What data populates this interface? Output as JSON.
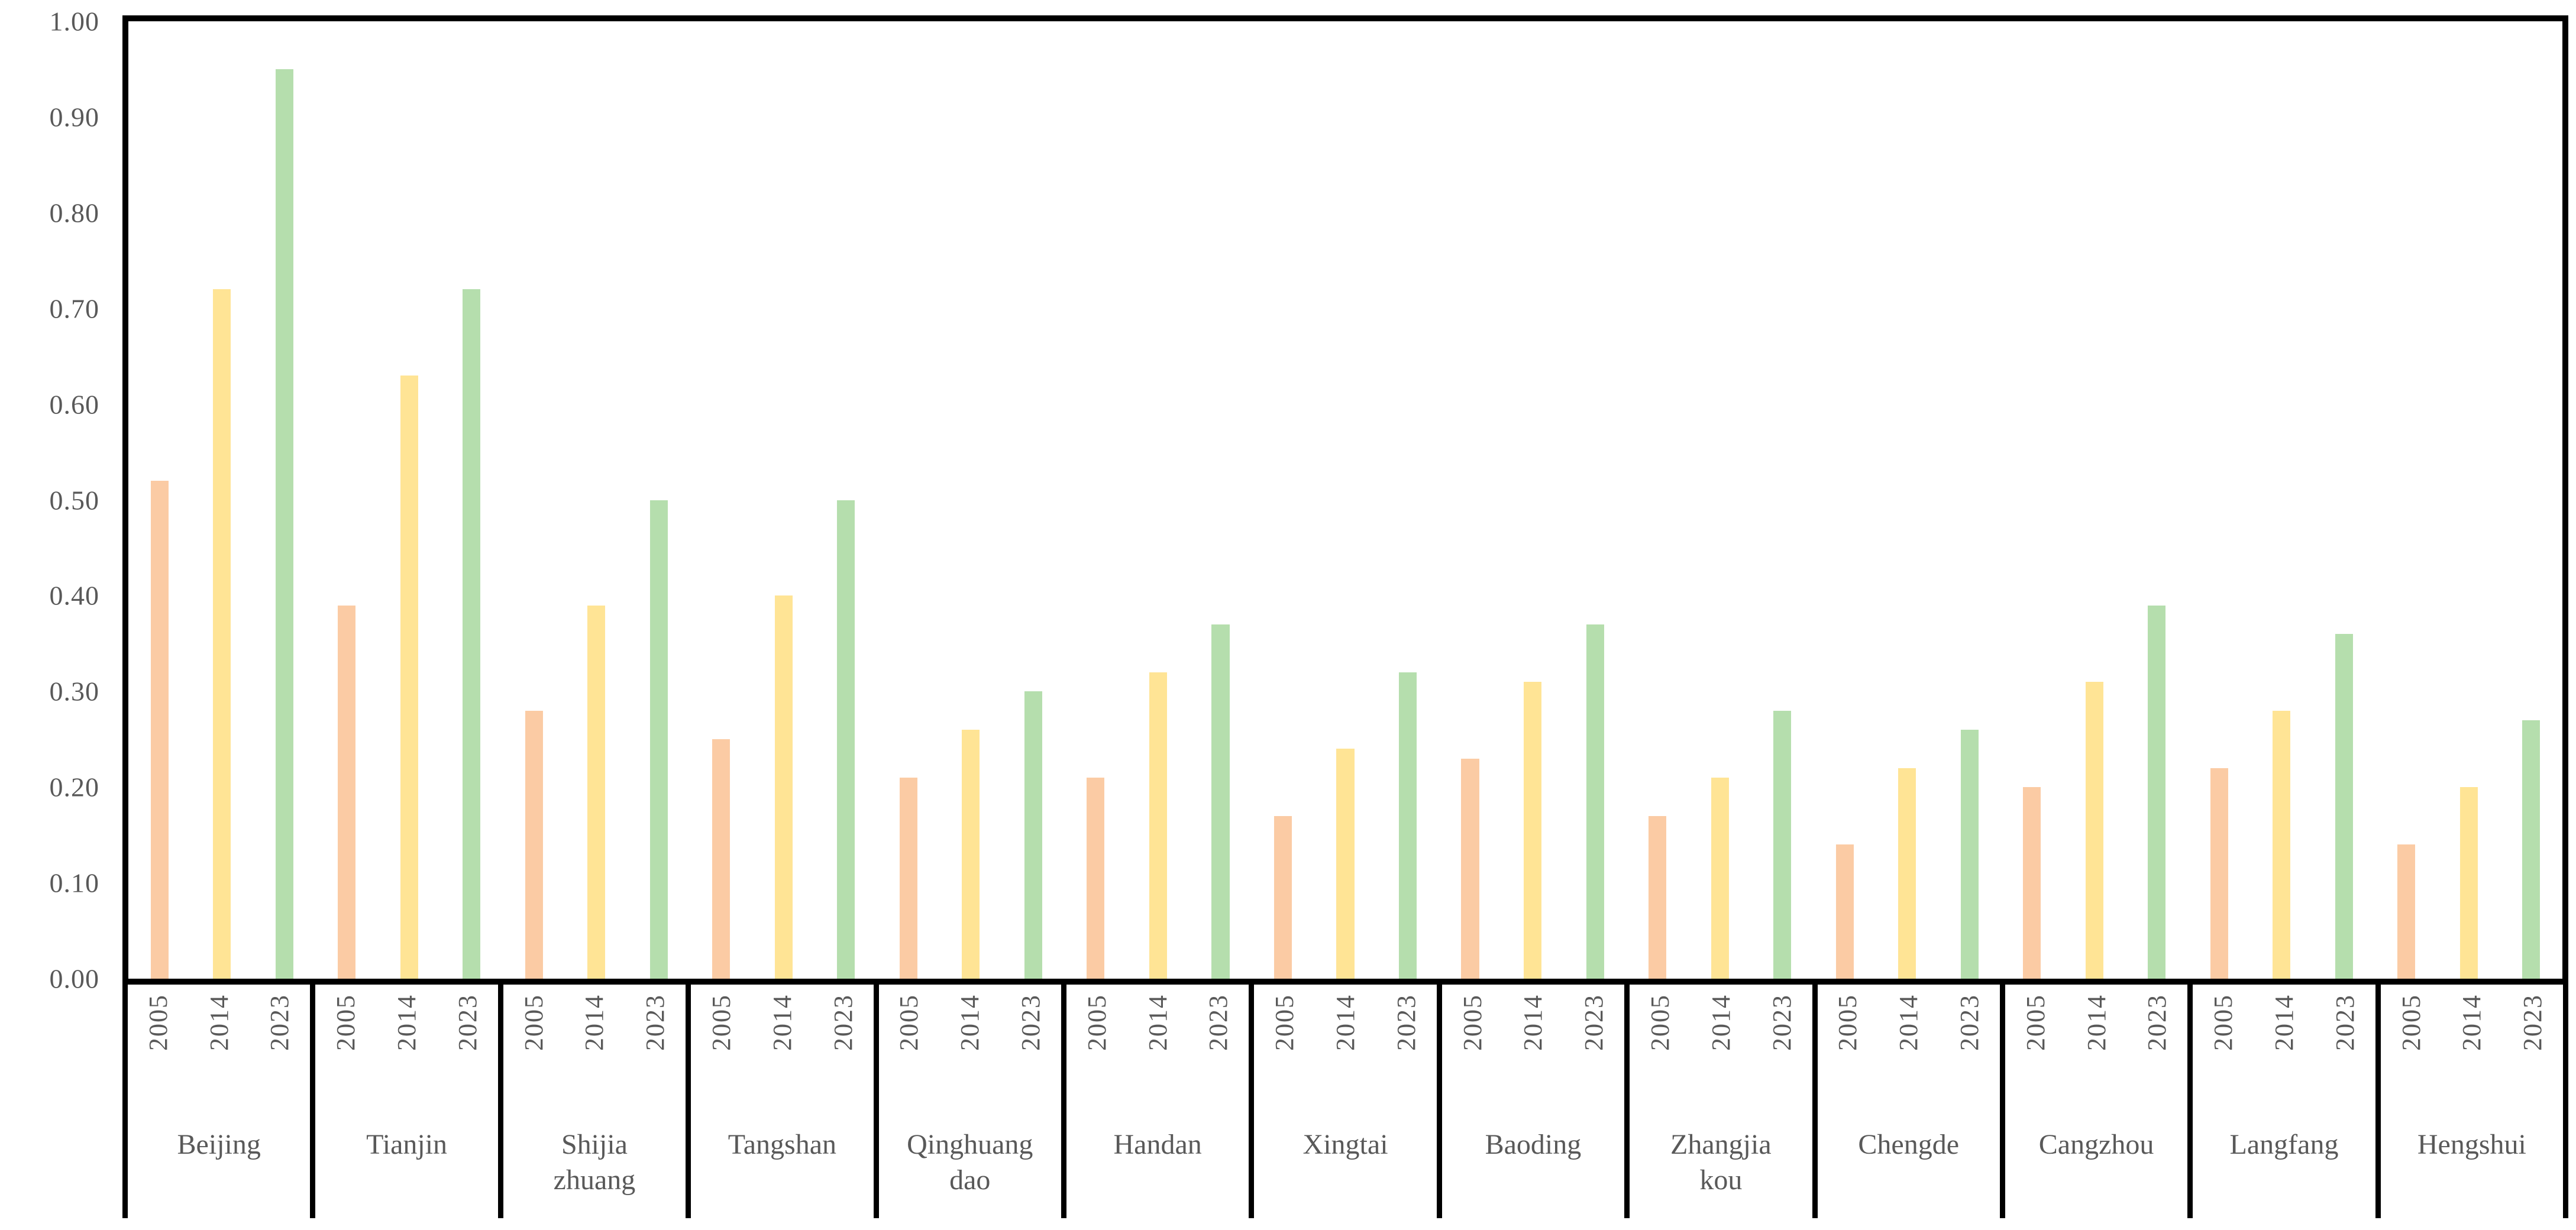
{
  "chart_data": {
    "type": "bar",
    "title": "",
    "xlabel": "",
    "ylabel": "",
    "ylim": [
      0.0,
      1.0
    ],
    "ytick_step": 0.1,
    "ytick_labels": [
      "1.00",
      "0.90",
      "0.80",
      "0.70",
      "0.60",
      "0.50",
      "0.40",
      "0.30",
      "0.20",
      "0.10",
      "0.00"
    ],
    "grid": false,
    "legend_position": "none",
    "group_year_labels": [
      "2005",
      "2014",
      "2023"
    ],
    "categories": [
      {
        "name": "Beijing",
        "lines": [
          "Beijing"
        ]
      },
      {
        "name": "Tianjin",
        "lines": [
          "Tianjin"
        ]
      },
      {
        "name": "Shijiazhuang",
        "lines": [
          "Shijia",
          "zhuang"
        ]
      },
      {
        "name": "Tangshan",
        "lines": [
          "Tangshan"
        ]
      },
      {
        "name": "Qinghuangdao",
        "lines": [
          "Qinghuang",
          "dao"
        ]
      },
      {
        "name": "Handan",
        "lines": [
          "Handan"
        ]
      },
      {
        "name": "Xingtai",
        "lines": [
          "Xingtai"
        ]
      },
      {
        "name": "Baoding",
        "lines": [
          "Baoding"
        ]
      },
      {
        "name": "Zhangjiakou",
        "lines": [
          "Zhangjia",
          "kou"
        ]
      },
      {
        "name": "Chengde",
        "lines": [
          "Chengde"
        ]
      },
      {
        "name": "Cangzhou",
        "lines": [
          "Cangzhou"
        ]
      },
      {
        "name": "Langfang",
        "lines": [
          "Langfang"
        ]
      },
      {
        "name": "Hengshui",
        "lines": [
          "Hengshui"
        ]
      }
    ],
    "series": [
      {
        "name": "2005",
        "color": "#FBCBA4",
        "values": [
          0.52,
          0.39,
          0.28,
          0.25,
          0.21,
          0.21,
          0.17,
          0.23,
          0.17,
          0.14,
          0.2,
          0.22,
          0.14
        ]
      },
      {
        "name": "2014",
        "color": "#FFE495",
        "values": [
          0.72,
          0.63,
          0.39,
          0.4,
          0.26,
          0.32,
          0.24,
          0.31,
          0.21,
          0.22,
          0.31,
          0.28,
          0.2
        ]
      },
      {
        "name": "2023",
        "color": "#B5DEAD",
        "values": [
          0.95,
          0.72,
          0.5,
          0.5,
          0.3,
          0.37,
          0.32,
          0.37,
          0.28,
          0.26,
          0.39,
          0.36,
          0.27
        ]
      }
    ],
    "colors": {
      "axis": "#000000",
      "tick_text": "#595959",
      "background": "#ffffff"
    }
  }
}
